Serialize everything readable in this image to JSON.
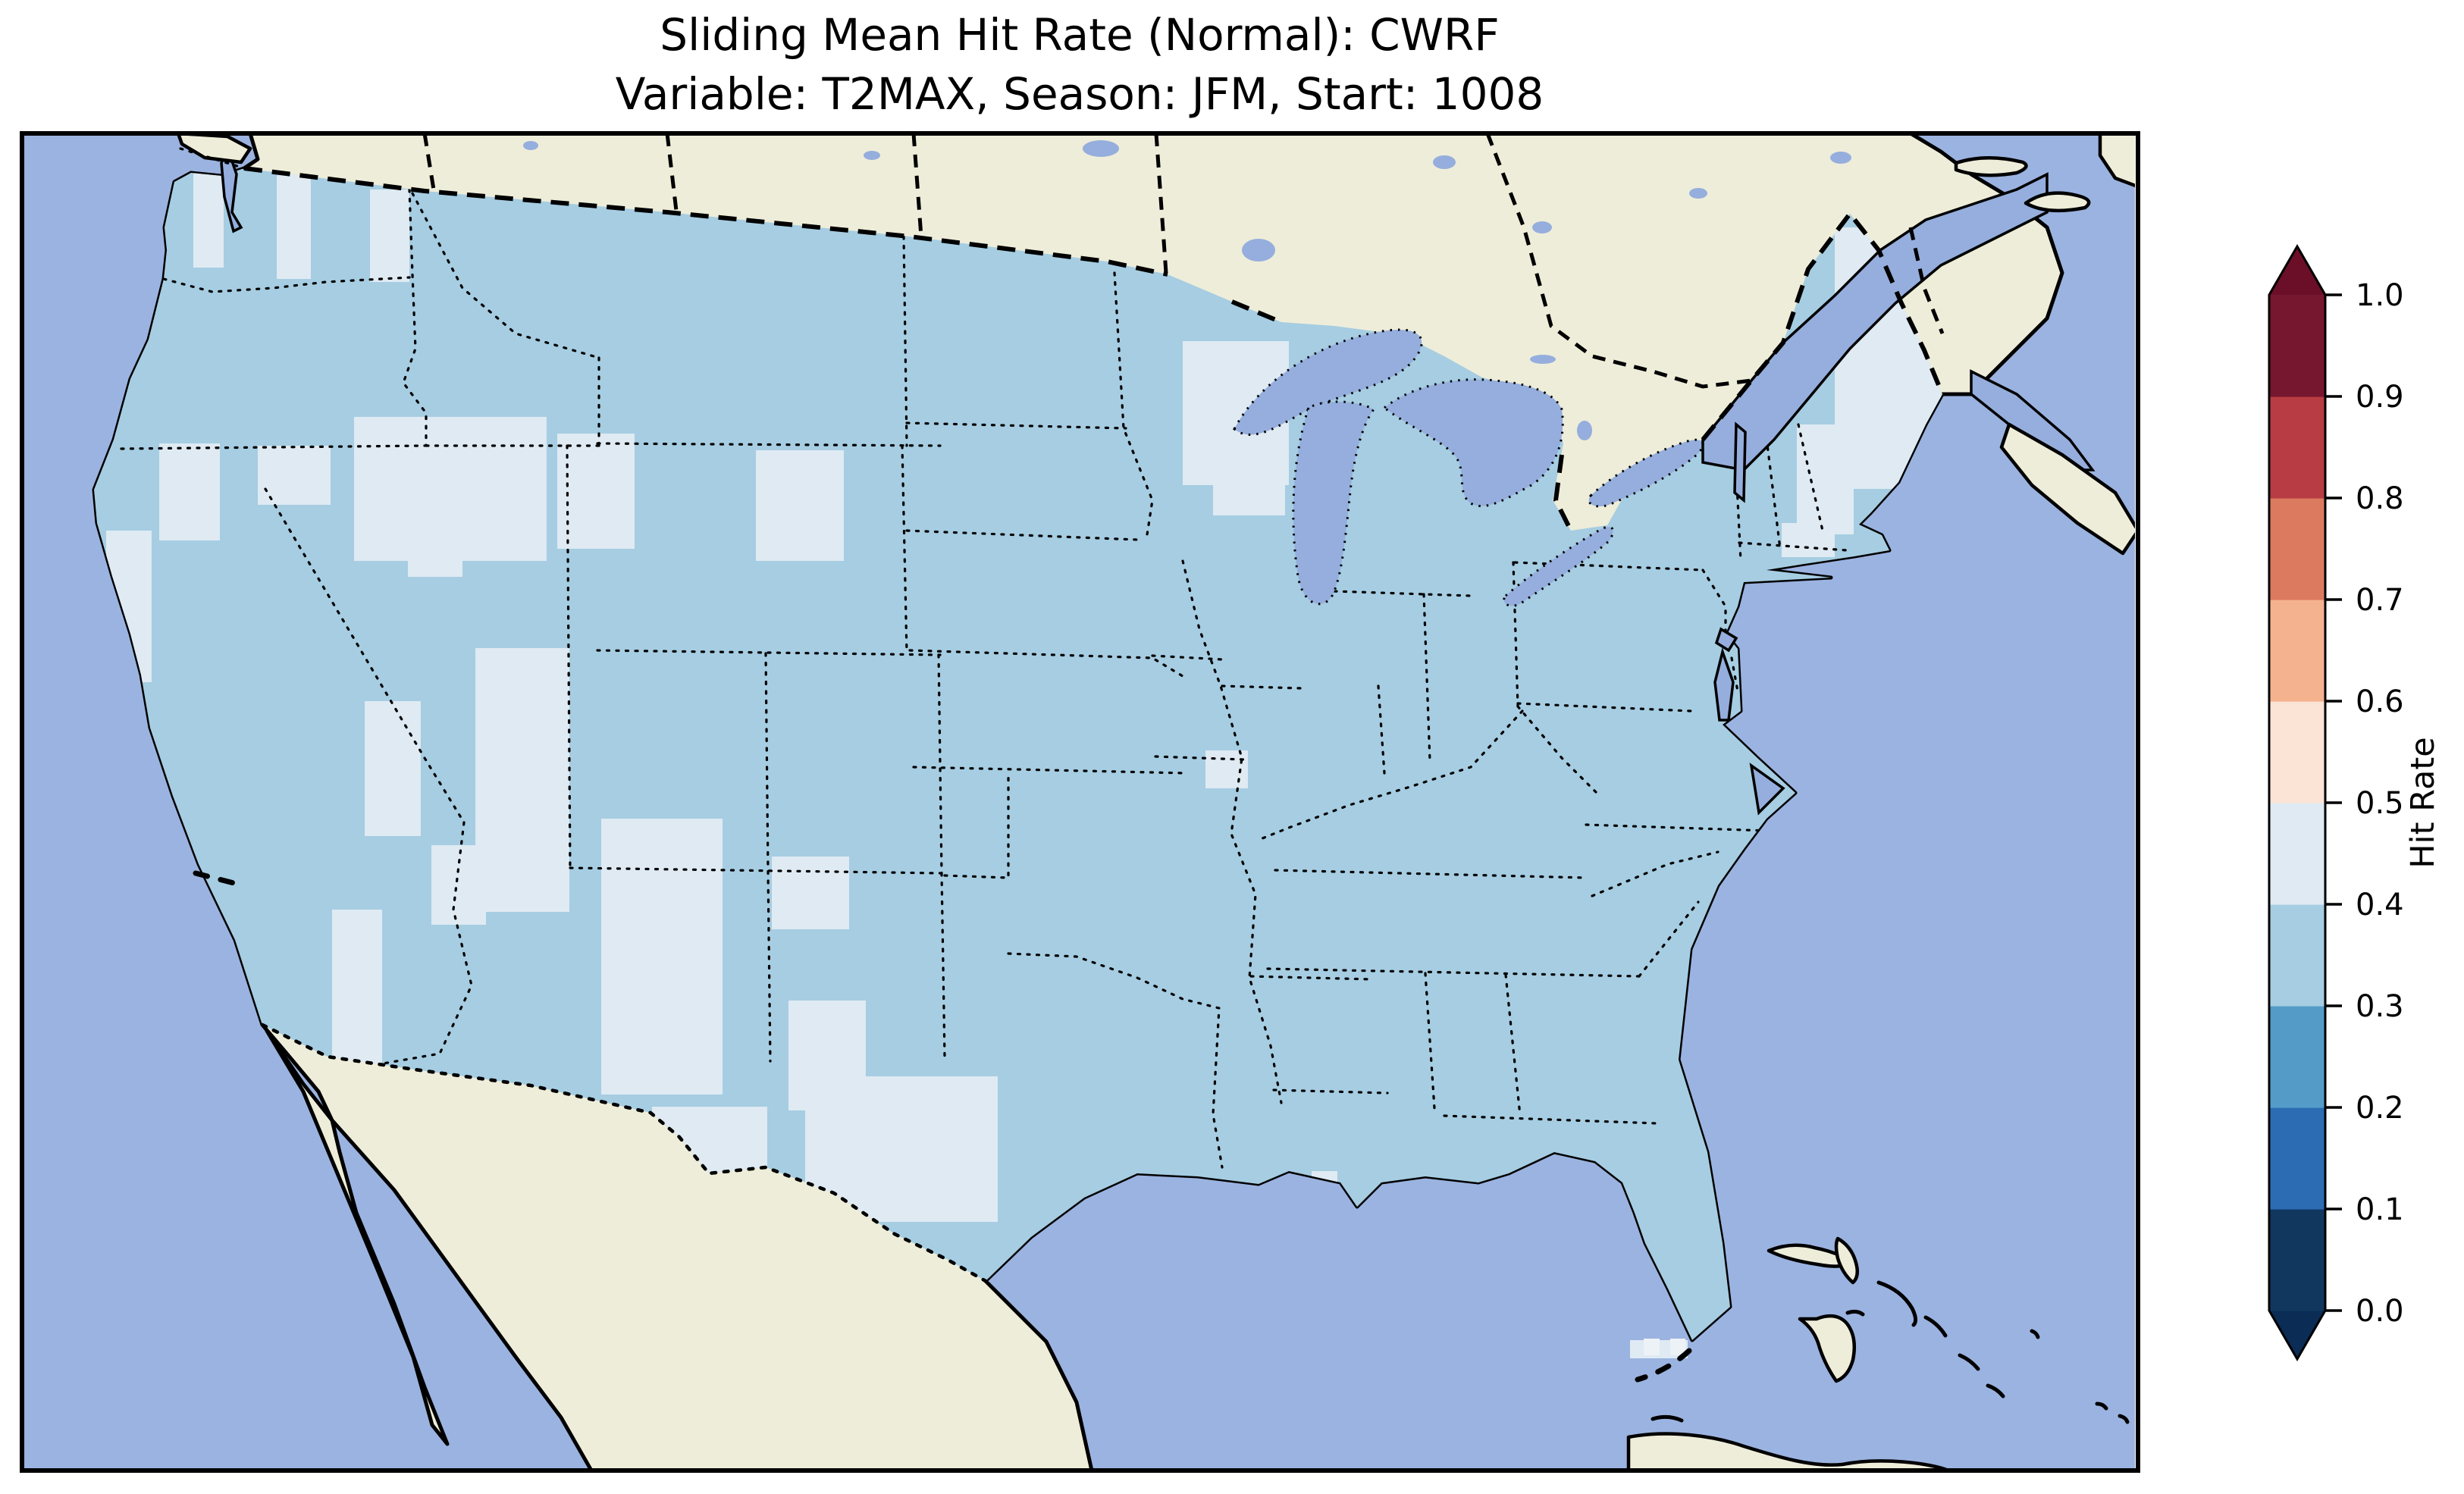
{
  "title": {
    "line1": "Sliding Mean Hit Rate (Normal): CWRF",
    "line2": "Variable: T2MAX, Season: JFM, Start: 1008"
  },
  "params": {
    "metric": "Sliding Mean Hit Rate",
    "category": "Normal",
    "model": "CWRF",
    "variable": "T2MAX",
    "season": "JFM",
    "start": "1008"
  },
  "colorbar": {
    "label": "Hit Rate",
    "orientation": "vertical-right",
    "extend": "both",
    "tick_labels_top_to_bottom": [
      "1.0",
      "0.9",
      "0.8",
      "0.7",
      "0.6",
      "0.5",
      "0.4",
      "0.3",
      "0.2",
      "0.1",
      "0.0"
    ],
    "bins_low_to_high": [
      {
        "range": "0.0-0.1",
        "color": "#11375f"
      },
      {
        "range": "0.1-0.2",
        "color": "#2b6cb3"
      },
      {
        "range": "0.2-0.3",
        "color": "#549cc7"
      },
      {
        "range": "0.3-0.4",
        "color": "#a6cde2"
      },
      {
        "range": "0.4-0.5",
        "color": "#dfeaf3"
      },
      {
        "range": "0.5-0.6",
        "color": "#fbe4d6"
      },
      {
        "range": "0.6-0.7",
        "color": "#f5b28f"
      },
      {
        "range": "0.7-0.8",
        "color": "#db7a5f"
      },
      {
        "range": "0.8-0.9",
        "color": "#b83c43"
      },
      {
        "range": "0.9-1.0",
        "color": "#77162f"
      }
    ],
    "over_color": "#6b0f28",
    "under_color": "#0a2c55"
  },
  "map": {
    "colors": {
      "ocean": "#9bb3e0",
      "land": "#eeedd9",
      "lake": "#95aedd",
      "cell": "#a6cde2",
      "cellLight": "#dfeaf3",
      "cellLighter": "#edf2f7"
    },
    "features": [
      "coastlines",
      "us-state-borders-dotted",
      "us-canada-border-dashed",
      "us-mexico-border-dotted",
      "great-lakes",
      "gulf-of-california",
      "st-lawrence",
      "bahamas",
      "cuba",
      "nova-scotia"
    ],
    "data_region": "Contiguous United States (CONUS)"
  },
  "chart_data": {
    "type": "heatmap",
    "geographic": true,
    "title": "Sliding Mean Hit Rate (Normal): CWRF",
    "subtitle": "Variable: T2MAX, Season: JFM, Start: 1008",
    "colormap": "RdBu reversed, discrete 0.1-wide bins, extended arrows both ends",
    "colorbar_label": "Hit Rate",
    "colorbar_ticks": [
      0.0,
      0.1,
      0.2,
      0.3,
      0.4,
      0.5,
      0.6,
      0.7,
      0.8,
      0.9,
      1.0
    ],
    "value_summary": {
      "dominant_bin": "0.3-0.4 hit rate over most of the contiguous United States",
      "secondary_bin": "0.4-0.5 hit rate patches over the Cascades, Olympic Peninsula, central Oregon, central Idaho, NW Wyoming, central Nevada, Utah Wasatch, Colorado Rockies, Sierra Nevada, New Mexico, west Texas, northern Minnesota / west Lake Superior, New England (Maine, NH, VT) and small spots in Missouri and near New Orleans",
      "isolated_cells": "a few ~0.5 (near-white) cells near the Florida Keys",
      "no_data": "Canada, Mexico, oceans and Caribbean shown as plain land/ocean basemap"
    }
  }
}
